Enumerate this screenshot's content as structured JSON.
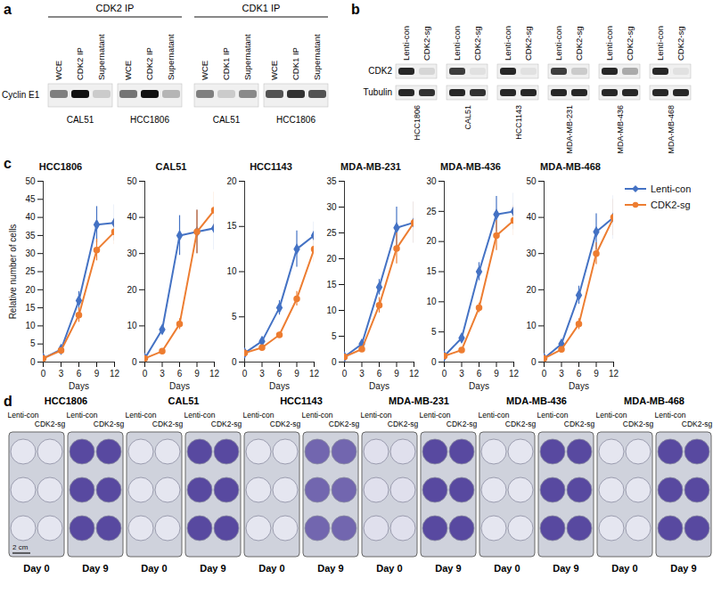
{
  "panel_a": {
    "label": "a",
    "row_label": "Cyclin E1",
    "groups": [
      {
        "title": "CDK2 IP",
        "cell_lines": [
          {
            "name": "CAL51",
            "lanes": [
              {
                "label": "WCE",
                "band": 0.5
              },
              {
                "label": "CDK2 IP",
                "band": 1.0
              },
              {
                "label": "Supernatant",
                "band": 0.15
              }
            ]
          },
          {
            "name": "HCC1806",
            "lanes": [
              {
                "label": "WCE",
                "band": 0.55
              },
              {
                "label": "CDK2 IP",
                "band": 1.0
              },
              {
                "label": "Supernatant",
                "band": 0.25
              }
            ]
          }
        ]
      },
      {
        "title": "CDK1 IP",
        "cell_lines": [
          {
            "name": "CAL51",
            "lanes": [
              {
                "label": "WCE",
                "band": 0.5
              },
              {
                "label": "CDK1 IP",
                "band": 0.15
              },
              {
                "label": "Supernatant",
                "band": 0.45
              }
            ]
          },
          {
            "name": "HCC1806",
            "lanes": [
              {
                "label": "WCE",
                "band": 0.7
              },
              {
                "label": "CDK1 IP",
                "band": 0.85
              },
              {
                "label": "Supernatant",
                "band": 0.7
              }
            ]
          }
        ]
      }
    ]
  },
  "panel_b": {
    "label": "b",
    "rows": [
      "CDK2",
      "Tubulin"
    ],
    "cell_lines": [
      {
        "name": "HCC1806",
        "lanes": [
          {
            "label": "Lenti-con",
            "bands": [
              0.9,
              0.9
            ]
          },
          {
            "label": "CDK2-sg",
            "bands": [
              0.1,
              0.85
            ]
          }
        ]
      },
      {
        "name": "CAL51",
        "lanes": [
          {
            "label": "Lenti-con",
            "bands": [
              0.8,
              0.9
            ]
          },
          {
            "label": "CDK2-sg",
            "bands": [
              0.05,
              0.85
            ]
          }
        ]
      },
      {
        "name": "HCC1143",
        "lanes": [
          {
            "label": "Lenti-con",
            "bands": [
              0.9,
              0.9
            ]
          },
          {
            "label": "CDK2-sg",
            "bands": [
              0.05,
              0.9
            ]
          }
        ]
      },
      {
        "name": "MDA-MB-231",
        "lanes": [
          {
            "label": "Lenti-con",
            "bands": [
              0.8,
              0.9
            ]
          },
          {
            "label": "CDK2-sg",
            "bands": [
              0.15,
              0.9
            ]
          }
        ]
      },
      {
        "name": "MDA-MB-436",
        "lanes": [
          {
            "label": "Lenti-con",
            "bands": [
              0.9,
              0.9
            ]
          },
          {
            "label": "CDK2-sg",
            "bands": [
              0.3,
              0.9
            ]
          }
        ]
      },
      {
        "name": "MDA-MB-468",
        "lanes": [
          {
            "label": "Lenti-con",
            "bands": [
              0.9,
              0.9
            ]
          },
          {
            "label": "CDK2-sg",
            "bands": [
              0.05,
              0.9
            ]
          }
        ]
      }
    ]
  },
  "panel_c": {
    "label": "c"
  },
  "chart_data": [
    {
      "type": "line",
      "title": "HCC1806",
      "xlabel": "Days",
      "ylabel": "Relative number of cells",
      "x": [
        0,
        3,
        6,
        9,
        12
      ],
      "xlim": [
        0,
        12
      ],
      "xticks": [
        0,
        3,
        6,
        9,
        12
      ],
      "ylim": [
        0,
        50
      ],
      "yticks": [
        0,
        5,
        10,
        15,
        20,
        25,
        30,
        35,
        40,
        45,
        50
      ],
      "series": [
        {
          "name": "Lenti-con",
          "color": "#4472c4",
          "marker": "diamond",
          "values": [
            1,
            3.5,
            17,
            38,
            38.5
          ],
          "errors": [
            0,
            0.5,
            2.5,
            5,
            5
          ]
        },
        {
          "name": "CDK2-sg",
          "color": "#ed7d31",
          "marker": "circle",
          "values": [
            1,
            3.2,
            13,
            31,
            36
          ],
          "errors": [
            0,
            0.5,
            2,
            3,
            3.5
          ]
        }
      ]
    },
    {
      "type": "line",
      "title": "CAL51",
      "xlabel": "Days",
      "x": [
        0,
        3,
        6,
        9,
        12
      ],
      "xlim": [
        0,
        12
      ],
      "xticks": [
        0,
        3,
        6,
        9,
        12
      ],
      "ylim": [
        0,
        50
      ],
      "yticks": [
        0,
        10,
        20,
        30,
        40,
        50
      ],
      "series": [
        {
          "name": "Lenti-con",
          "color": "#4472c4",
          "marker": "diamond",
          "values": [
            1,
            9,
            35,
            36,
            37
          ],
          "errors": [
            0,
            1,
            5.5,
            6,
            6
          ]
        },
        {
          "name": "CDK2-sg",
          "color": "#ed7d31",
          "marker": "circle",
          "values": [
            1,
            3,
            10.5,
            36,
            42
          ],
          "errors": [
            0,
            0.5,
            1.5,
            6,
            5
          ]
        }
      ]
    },
    {
      "type": "line",
      "title": "HCC1143",
      "xlabel": "Days",
      "x": [
        0,
        3,
        6,
        9,
        12
      ],
      "xlim": [
        0,
        12
      ],
      "xticks": [
        0,
        3,
        6,
        9,
        12
      ],
      "ylim": [
        0,
        20
      ],
      "yticks": [
        0,
        5,
        10,
        15,
        20
      ],
      "series": [
        {
          "name": "Lenti-con",
          "color": "#4472c4",
          "marker": "diamond",
          "values": [
            1,
            2.3,
            6,
            12.5,
            14
          ],
          "errors": [
            0,
            0.2,
            0.8,
            2,
            1.5
          ]
        },
        {
          "name": "CDK2-sg",
          "color": "#ed7d31",
          "marker": "circle",
          "values": [
            1,
            1.6,
            3,
            7,
            12.5
          ],
          "errors": [
            0,
            0.2,
            0.3,
            0.8,
            1.5
          ]
        }
      ]
    },
    {
      "type": "line",
      "title": "MDA-MB-231",
      "xlabel": "Days",
      "x": [
        0,
        3,
        6,
        9,
        12
      ],
      "xlim": [
        0,
        12
      ],
      "xticks": [
        0,
        3,
        6,
        9,
        12
      ],
      "ylim": [
        0,
        35
      ],
      "yticks": [
        0,
        5,
        10,
        15,
        20,
        25,
        30,
        35
      ],
      "series": [
        {
          "name": "Lenti-con",
          "color": "#4472c4",
          "marker": "diamond",
          "values": [
            1,
            3.5,
            14.5,
            26,
            27
          ],
          "errors": [
            0,
            0.5,
            1.5,
            4,
            4
          ]
        },
        {
          "name": "CDK2-sg",
          "color": "#ed7d31",
          "marker": "circle",
          "values": [
            1,
            2.5,
            11,
            22,
            27
          ],
          "errors": [
            0,
            0.5,
            1.5,
            3,
            4
          ]
        }
      ]
    },
    {
      "type": "line",
      "title": "MDA-MB-436",
      "xlabel": "Days",
      "x": [
        0,
        3,
        6,
        9,
        12
      ],
      "xlim": [
        0,
        12
      ],
      "xticks": [
        0,
        3,
        6,
        9,
        12
      ],
      "ylim": [
        0,
        30
      ],
      "yticks": [
        0,
        5,
        10,
        15,
        20,
        25,
        30
      ],
      "series": [
        {
          "name": "Lenti-con",
          "color": "#4472c4",
          "marker": "diamond",
          "values": [
            1,
            4,
            15,
            24.5,
            25
          ],
          "errors": [
            0,
            0.5,
            1.5,
            3,
            3
          ]
        },
        {
          "name": "CDK2-sg",
          "color": "#ed7d31",
          "marker": "circle",
          "values": [
            1,
            2,
            9,
            21,
            23.5
          ],
          "errors": [
            0,
            0.3,
            0.8,
            2.5,
            2.5
          ]
        }
      ]
    },
    {
      "type": "line",
      "title": "MDA-MB-468",
      "xlabel": "Days",
      "legend": "right",
      "x": [
        0,
        3,
        6,
        9,
        12
      ],
      "xlim": [
        0,
        12
      ],
      "xticks": [
        0,
        3,
        6,
        9,
        12
      ],
      "ylim": [
        0,
        50
      ],
      "yticks": [
        0,
        10,
        20,
        30,
        40,
        50
      ],
      "series": [
        {
          "name": "Lenti-con",
          "color": "#4472c4",
          "marker": "diamond",
          "values": [
            1,
            5,
            18.5,
            36,
            40
          ],
          "errors": [
            0,
            1,
            2.5,
            5,
            6
          ]
        },
        {
          "name": "CDK2-sg",
          "color": "#ed7d31",
          "marker": "circle",
          "values": [
            1,
            3.5,
            10.5,
            30,
            40
          ],
          "errors": [
            0,
            0.5,
            1.5,
            3,
            5
          ]
        }
      ]
    }
  ],
  "panel_d": {
    "label": "d",
    "scale_bar": "2 cm",
    "column_labels": [
      "Lenti-con",
      "CDK2-sg"
    ],
    "groups": [
      {
        "name": "HCC1806",
        "plates": [
          {
            "day": "Day 0",
            "stain": 0.05
          },
          {
            "day": "Day 9",
            "stain": 0.85
          }
        ]
      },
      {
        "name": "CAL51",
        "plates": [
          {
            "day": "Day 0",
            "stain": 0.05
          },
          {
            "day": "Day 9",
            "stain": 0.85
          }
        ]
      },
      {
        "name": "HCC1143",
        "plates": [
          {
            "day": "Day 0",
            "stain": 0.05
          },
          {
            "day": "Day 9",
            "stain": 0.7
          }
        ]
      },
      {
        "name": "MDA-MB-231",
        "plates": [
          {
            "day": "Day 0",
            "stain": 0.08
          },
          {
            "day": "Day 9",
            "stain": 0.85
          }
        ]
      },
      {
        "name": "MDA-MB-436",
        "plates": [
          {
            "day": "Day 0",
            "stain": 0.05
          },
          {
            "day": "Day 9",
            "stain": 0.85
          }
        ]
      },
      {
        "name": "MDA-MB-468",
        "plates": [
          {
            "day": "Day 0",
            "stain": 0.05
          },
          {
            "day": "Day 9",
            "stain": 0.85
          }
        ]
      }
    ]
  }
}
